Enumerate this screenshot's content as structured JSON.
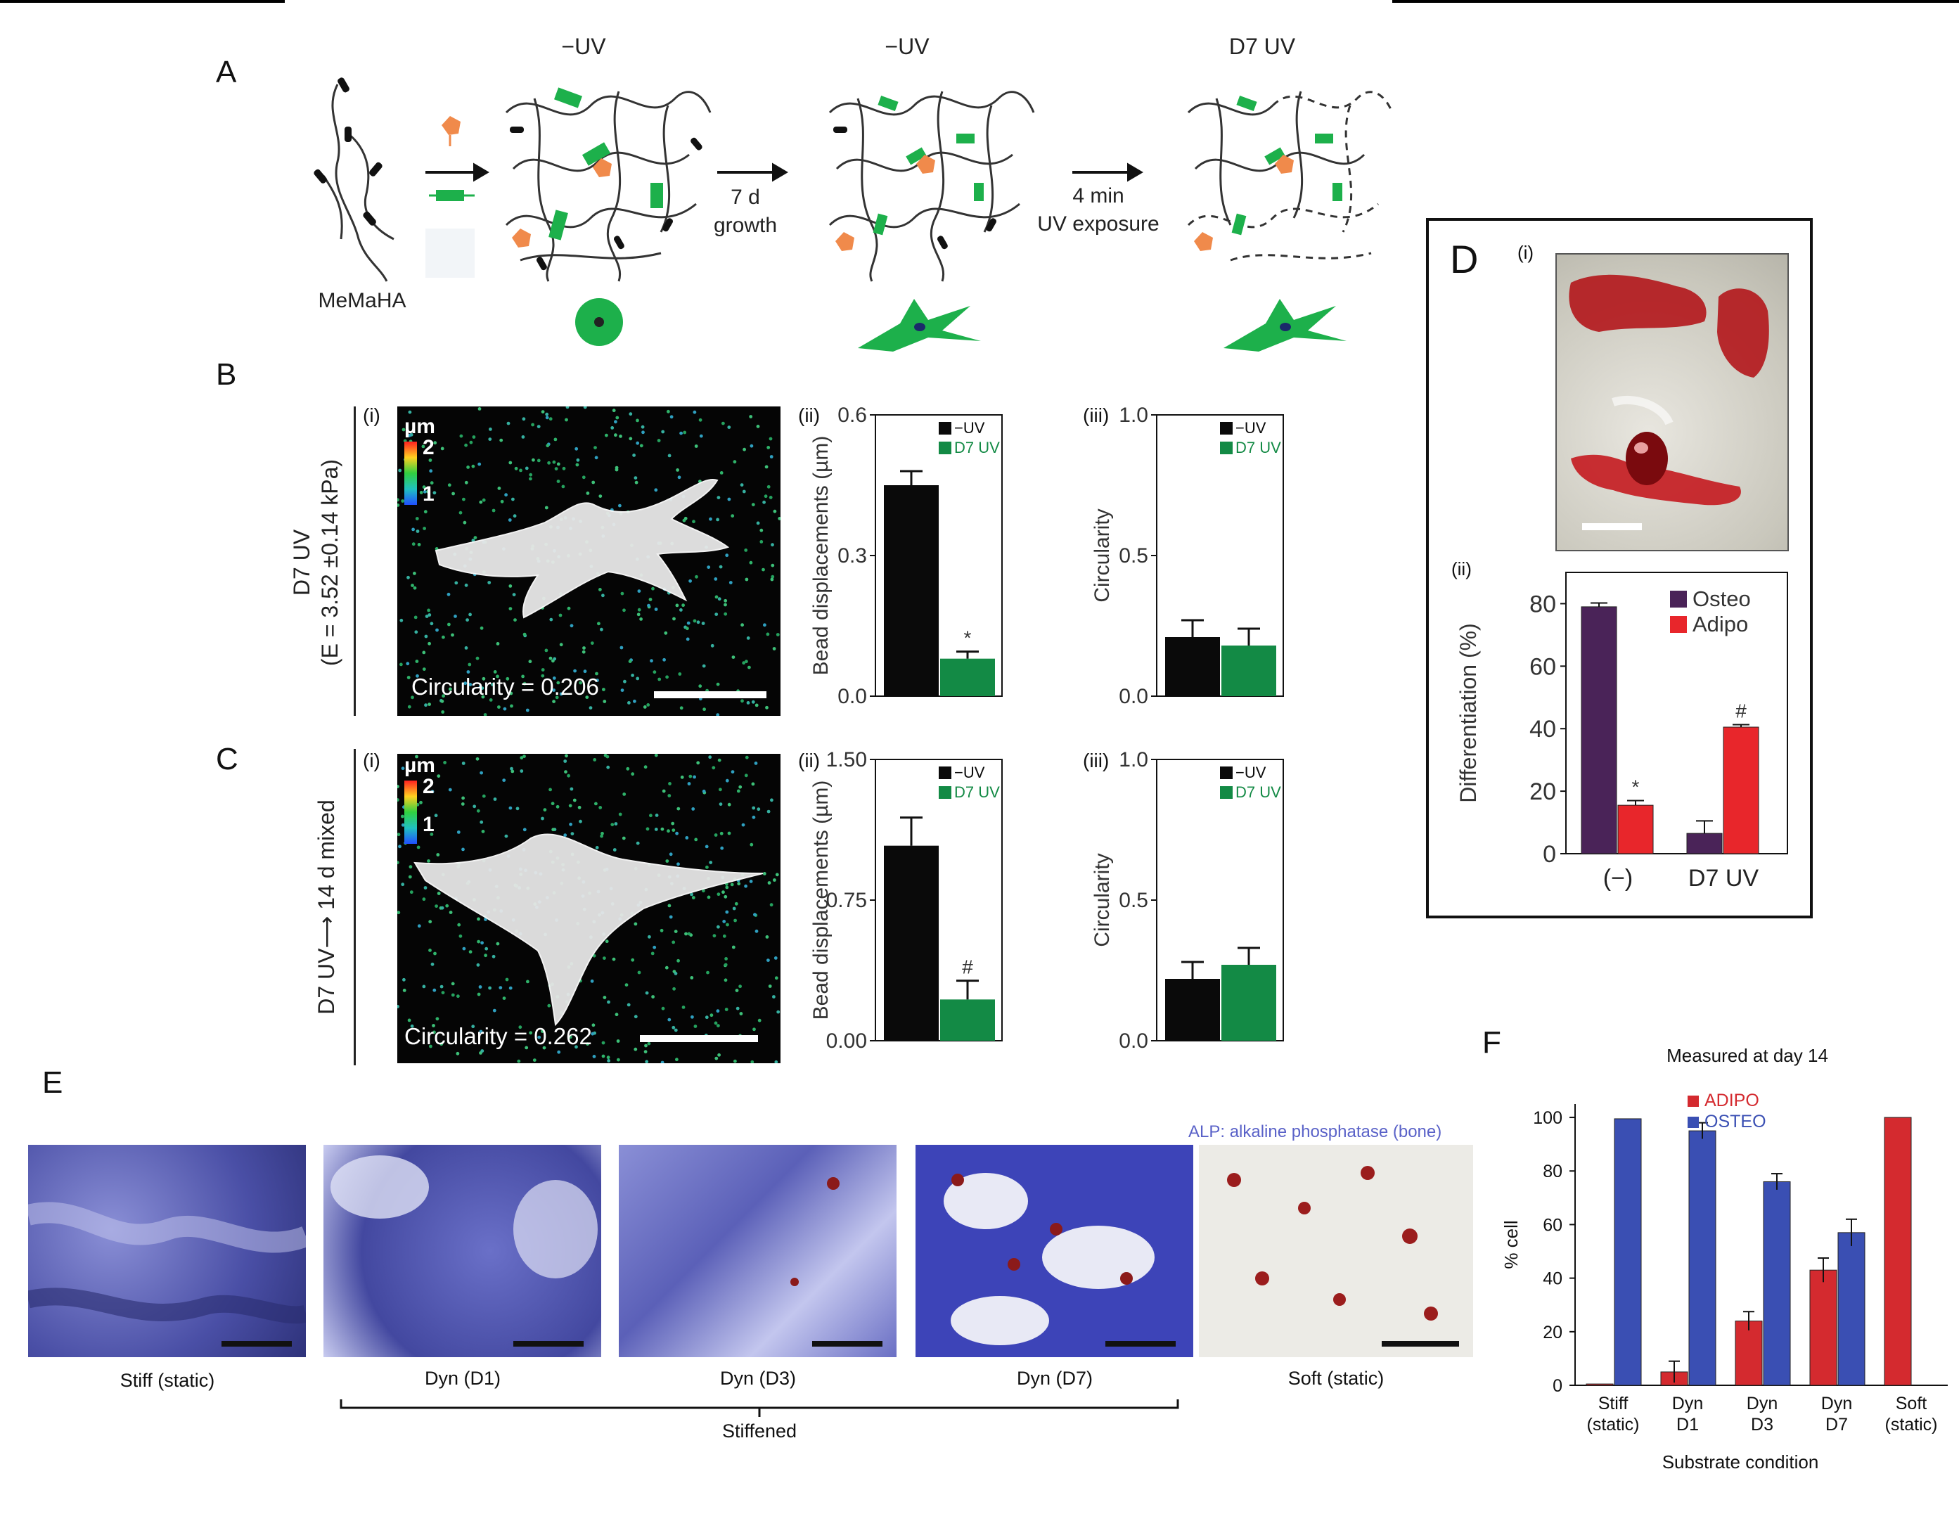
{
  "panels": {
    "a": "A",
    "b": "B",
    "c": "C",
    "d": "D",
    "e": "E",
    "f": "F"
  },
  "panelA": {
    "header1": "−UV",
    "header2": "−UV",
    "header3": "D7 UV",
    "polymer": "MeMaHA",
    "step2a": "7 d",
    "step2b": "growth",
    "step3a": "4 min",
    "step3b": "UV exposure"
  },
  "panelB": {
    "side_title": "D7 UV",
    "side_sub": "(E = 3.52 ±0.14 kPa)",
    "sub_i": "(i)",
    "sub_ii": "(ii)",
    "sub_iii": "(iii)",
    "scale_unit": "µm",
    "scale_hi": "2",
    "scale_lo": "1",
    "circularity_text": "Circularity = 0.206"
  },
  "panelC": {
    "side_title": "D7 UV⟶ 14 d mixed",
    "sub_i": "(i)",
    "sub_ii": "(ii)",
    "sub_iii": "(iii)",
    "scale_unit": "µm",
    "scale_hi": "2",
    "scale_lo": "1",
    "circularity_text": "Circularity = 0.262"
  },
  "panelD": {
    "sub_i": "(i)",
    "sub_ii": "(ii)"
  },
  "panelE": {
    "captions": [
      "Stiff (static)",
      "Dyn (D1)",
      "Dyn (D3)",
      "Dyn (D7)",
      "Soft (static)"
    ],
    "bracket": "Stiffened",
    "stain_note": "ALP: alkaline phosphatase (bone)"
  },
  "colors": {
    "black_bar": "#0a0a0a",
    "green_bar": "#138a45",
    "osteo_purple": "#4a2358",
    "adipo_red": "#e8262b",
    "f_red": "#d42a2f",
    "f_blue": "#3a4fb3",
    "stain_blue": "#5b5fb8"
  },
  "chart_data": [
    {
      "id": "B_ii",
      "type": "bar",
      "categories": [
        ""
      ],
      "series": [
        {
          "name": "−UV",
          "values": [
            0.45
          ],
          "errors": [
            0.03
          ]
        },
        {
          "name": "D7 UV",
          "values": [
            0.08
          ],
          "errors": [
            0.015
          ]
        }
      ],
      "annotations": [
        {
          "series": "D7 UV",
          "text": "*"
        }
      ],
      "ylabel": "Bead displacements (µm)",
      "ylim": [
        0,
        0.6
      ],
      "yticks": [
        "0.0",
        "0.3",
        "0.6"
      ],
      "legend": "top-right"
    },
    {
      "id": "B_iii",
      "type": "bar",
      "categories": [
        ""
      ],
      "series": [
        {
          "name": "−UV",
          "values": [
            0.21
          ],
          "errors": [
            0.06
          ]
        },
        {
          "name": "D7 UV",
          "values": [
            0.18
          ],
          "errors": [
            0.06
          ]
        }
      ],
      "ylabel": "Circularity",
      "ylim": [
        0,
        1.0
      ],
      "yticks": [
        "0.0",
        "0.5",
        "1.0"
      ],
      "legend": "top-right"
    },
    {
      "id": "C_ii",
      "type": "bar",
      "categories": [
        ""
      ],
      "series": [
        {
          "name": "−UV",
          "values": [
            1.04
          ],
          "errors": [
            0.15
          ]
        },
        {
          "name": "D7 UV",
          "values": [
            0.22
          ],
          "errors": [
            0.1
          ]
        }
      ],
      "annotations": [
        {
          "series": "D7 UV",
          "text": "#"
        }
      ],
      "ylabel": "Bead displacements (µm)",
      "ylim": [
        0,
        1.5
      ],
      "yticks": [
        "0.00",
        "0.75",
        "1.50"
      ],
      "legend": "top-right"
    },
    {
      "id": "C_iii",
      "type": "bar",
      "categories": [
        ""
      ],
      "series": [
        {
          "name": "−UV",
          "values": [
            0.22
          ],
          "errors": [
            0.06
          ]
        },
        {
          "name": "D7 UV",
          "values": [
            0.27
          ],
          "errors": [
            0.06
          ]
        }
      ],
      "ylabel": "Circularity",
      "ylim": [
        0,
        1.0
      ],
      "yticks": [
        "0.0",
        "0.5",
        "1.0"
      ],
      "legend": "top-right"
    },
    {
      "id": "D_ii",
      "type": "bar",
      "categories": [
        "(−)",
        "D7 UV"
      ],
      "series": [
        {
          "name": "Osteo",
          "values": [
            79,
            6.5
          ],
          "errors": [
            1.2,
            4
          ]
        },
        {
          "name": "Adipo",
          "values": [
            15.5,
            40.5
          ],
          "errors": [
            1.5,
            0.8
          ]
        }
      ],
      "annotations": [
        {
          "category": "(−)",
          "series": "Adipo",
          "text": "*"
        },
        {
          "category": "D7 UV",
          "series": "Adipo",
          "text": "#"
        }
      ],
      "ylabel": "Differentiation (%)",
      "ylim": [
        0,
        90
      ],
      "yticks": [
        "0",
        "20",
        "40",
        "60",
        "80"
      ],
      "legend": "top-right"
    },
    {
      "id": "F",
      "type": "bar",
      "title": "Measured at day 14",
      "categories": [
        "Stiff\n(static)",
        "Dyn\nD1",
        "Dyn\nD3",
        "Dyn\nD7",
        "Soft\n(static)"
      ],
      "series": [
        {
          "name": "ADIPO",
          "values": [
            0.5,
            5,
            24,
            43,
            100
          ],
          "errors": [
            0,
            4,
            3.5,
            4.5,
            0
          ]
        },
        {
          "name": "OSTEO",
          "values": [
            99.5,
            95,
            76,
            57,
            0
          ],
          "errors": [
            0,
            3,
            3,
            5,
            0
          ]
        }
      ],
      "xlabel": "Substrate condition",
      "ylabel": "% cell",
      "ylim": [
        0,
        105
      ],
      "yticks": [
        "0",
        "20",
        "40",
        "60",
        "80",
        "100"
      ],
      "legend": "top-left"
    }
  ]
}
